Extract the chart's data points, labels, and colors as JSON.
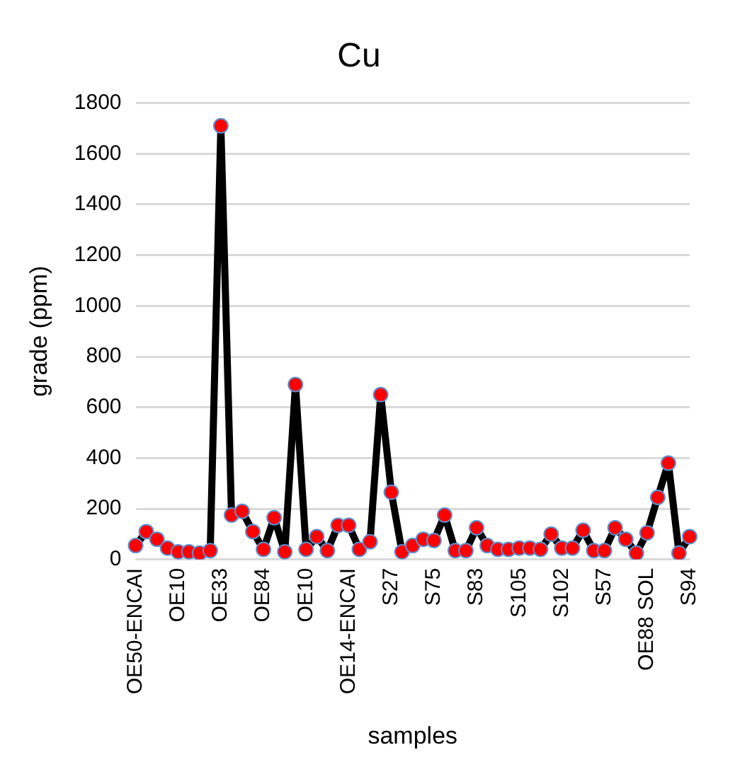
{
  "chart_data": {
    "type": "line",
    "title": "Cu",
    "xlabel": "samples",
    "ylabel": "grade (ppm)",
    "categories": [
      "OE50-ENCAI",
      null,
      null,
      null,
      "OE10",
      null,
      null,
      null,
      "OE33",
      null,
      null,
      null,
      "OE84",
      null,
      null,
      null,
      "OE10",
      null,
      null,
      null,
      "OE14-ENCAI",
      null,
      null,
      null,
      "S27",
      null,
      null,
      null,
      "S75",
      null,
      null,
      null,
      "S83",
      null,
      null,
      null,
      "S105",
      null,
      null,
      null,
      "S102",
      null,
      null,
      null,
      "S57",
      null,
      null,
      null,
      "OE88 SOL",
      null,
      null,
      null,
      "S94"
    ],
    "series": [
      {
        "color": "#000000",
        "colors": [
          "#ff0000",
          "#ff0000",
          "#ff0000",
          "#ff0000",
          "#ff0000",
          "#ff0000",
          "#ff0000",
          "#ff0000",
          "#ff0000",
          "#ff0000",
          "#ff0000",
          "#ff0000",
          "#ff0000",
          "#ff0000",
          "#ff0000",
          "#ff0000",
          "#ff0000",
          "#ff0000",
          "#ff0000",
          "#ff0000",
          "#ff0000",
          "#ff0000",
          "#ff0000",
          "#ff0000",
          "#ff0000",
          "#ff0000",
          "#ff0000",
          "#ff0000",
          "#ff0000",
          "#ff0000",
          "#ff0000",
          "#ff0000",
          "#ff0000",
          "#ff0000",
          "#ff0000",
          "#ff0000",
          "#ff0000",
          "#ff0000",
          "#ff0000",
          "#ff0000",
          "#ff0000",
          "#ff0000",
          "#ff0000",
          "#ff0000",
          "#ff0000",
          "#ff0000",
          "#ff0000",
          "#ff0000",
          "#ff0000",
          "#ff0000",
          "#ff0000",
          "#ff0000",
          "#ff0000"
        ],
        "values": [
          55,
          110,
          80,
          45,
          30,
          30,
          25,
          35,
          1710,
          175,
          190,
          110,
          40,
          165,
          30,
          690,
          40,
          90,
          35,
          135,
          135,
          40,
          70,
          650,
          265,
          30,
          55,
          80,
          75,
          175,
          35,
          35,
          125,
          55,
          40,
          40,
          45,
          45,
          40,
          100,
          45,
          45,
          115,
          35,
          35,
          125,
          80,
          25,
          105,
          245,
          380,
          25,
          90
        ]
      }
    ],
    "ylim": [
      0,
      1800
    ],
    "yticks": [
      0,
      200,
      400,
      600,
      800,
      1000,
      1200,
      1400,
      1600,
      1800
    ],
    "grid": "y",
    "legend": false,
    "marker": "circle",
    "line_style": "solid"
  }
}
